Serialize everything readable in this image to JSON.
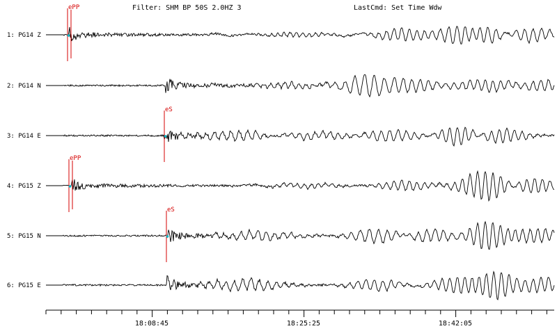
{
  "header": {
    "filter": "Filter: SHM BP 50S 2.0HZ 3",
    "last_cmd": "LastCmd: Set Time Wdw"
  },
  "traces": [
    {
      "label": "1: PG14 Z",
      "picks": [
        {
          "text": "ePP",
          "kind": "P"
        }
      ]
    },
    {
      "label": "2: PG14 N",
      "picks": []
    },
    {
      "label": "3: PG14 E",
      "picks": [
        {
          "text": "eS",
          "kind": "S"
        }
      ]
    },
    {
      "label": "4: PG15 Z",
      "picks": [
        {
          "text": "ePP",
          "kind": "P"
        }
      ]
    },
    {
      "label": "5: PG15 N",
      "picks": [
        {
          "text": "eS",
          "kind": "S"
        }
      ]
    },
    {
      "label": "6: PG15 E",
      "picks": []
    }
  ],
  "time_axis": {
    "labels": [
      "18:08:45",
      "18:25:25",
      "18:42:05"
    ]
  },
  "colors": {
    "trace": "#000000",
    "pick": "#d40000",
    "pick_marker": "#00b8c8",
    "axis": "#000000"
  }
}
